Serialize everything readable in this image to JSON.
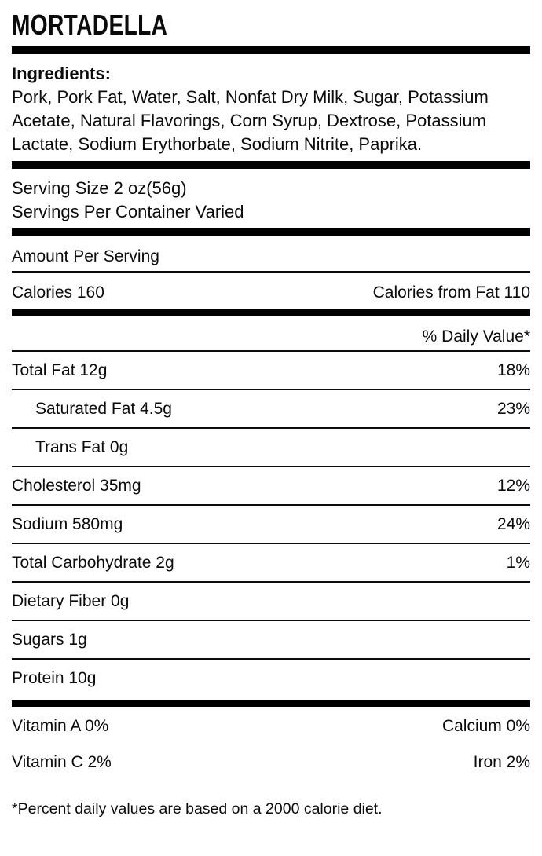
{
  "title": "MORTADELLA",
  "ingredients": {
    "label": "Ingredients:",
    "text": "Pork, Pork Fat, Water, Salt, Nonfat Dry Milk, Sugar, Potassium Acetate, Natural Flavorings, Corn Syrup, Dextrose, Potassium Lactate, Sodium Erythorbate, Sodium Nitrite, Paprika."
  },
  "serving": {
    "size": "Serving Size 2 oz(56g)",
    "per_container": "Servings Per Container Varied"
  },
  "amount_per_serving": "Amount Per Serving",
  "calories": {
    "left": "Calories 160",
    "right": "Calories from Fat 110"
  },
  "daily_value_header": "% Daily Value*",
  "nutrients": [
    {
      "label": "Total Fat 12g",
      "dv": "18%"
    },
    {
      "label": "Saturated Fat 4.5g",
      "dv": "23%"
    },
    {
      "label": "Trans Fat 0g",
      "dv": ""
    },
    {
      "label": "Cholesterol 35mg",
      "dv": "12%"
    },
    {
      "label": "Sodium 580mg",
      "dv": "24%"
    },
    {
      "label": "Total Carbohydrate 2g",
      "dv": "1%"
    },
    {
      "label": "Dietary Fiber 0g",
      "dv": ""
    },
    {
      "label": "Sugars 1g",
      "dv": ""
    },
    {
      "label": "Protein 10g",
      "dv": ""
    }
  ],
  "vitamins": [
    {
      "left": "Vitamin A 0%",
      "right": "Calcium 0%"
    },
    {
      "left": "Vitamin C 2%",
      "right": "Iron 2%"
    }
  ],
  "footnote": "*Percent daily values are based on a 2000 calorie diet.",
  "colors": {
    "ink": "#0b0b0b",
    "bar": "#000000",
    "background": "#ffffff"
  }
}
